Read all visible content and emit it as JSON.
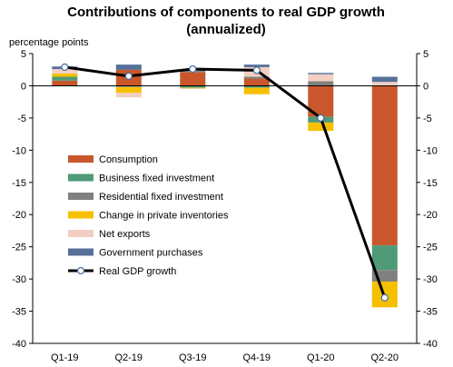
{
  "chart_data": {
    "type": "bar",
    "title_line1": "Contributions of components to real GDP growth",
    "title_line2": "(annualized)",
    "ylabel": "percentage points",
    "categories": [
      "Q1-19",
      "Q2-19",
      "Q3-19",
      "Q4-19",
      "Q1-20",
      "Q2-20"
    ],
    "ylim": [
      -40,
      5
    ],
    "yticks": [
      "5",
      "0",
      "-5",
      "-10",
      "-15",
      "-20",
      "-25",
      "-30",
      "-35",
      "-40"
    ],
    "grid": false,
    "legend_position": "left-center inside plot",
    "series": [
      {
        "name": "Consumption",
        "color": "#c9572b",
        "values": [
          0.8,
          2.5,
          2.1,
          1.1,
          -4.8,
          -24.8
        ]
      },
      {
        "name": "Business fixed investment",
        "color": "#4f9a77",
        "values": [
          0.6,
          -0.1,
          -0.3,
          -0.3,
          -0.9,
          -3.8
        ]
      },
      {
        "name": "Residential fixed investment",
        "color": "#808080",
        "values": [
          -0.04,
          -0.1,
          0.2,
          0.3,
          0.7,
          -1.8
        ]
      },
      {
        "name": "Change in private inventories",
        "color": "#f6c000",
        "values": [
          0.5,
          -0.9,
          -0.1,
          -1.0,
          -1.3,
          -4.0
        ]
      },
      {
        "name": "Net exports",
        "color": "#f2cfc2",
        "values": [
          0.7,
          -0.7,
          -0.1,
          1.5,
          1.1,
          0.6
        ]
      },
      {
        "name": "Government purchases",
        "color": "#56709a",
        "values": [
          0.4,
          0.8,
          0.3,
          0.4,
          0.2,
          0.8
        ]
      }
    ],
    "line": {
      "name": "Real GDP growth",
      "color": "#000000",
      "values": [
        2.9,
        1.5,
        2.6,
        2.4,
        -5.0,
        -32.9
      ]
    }
  }
}
